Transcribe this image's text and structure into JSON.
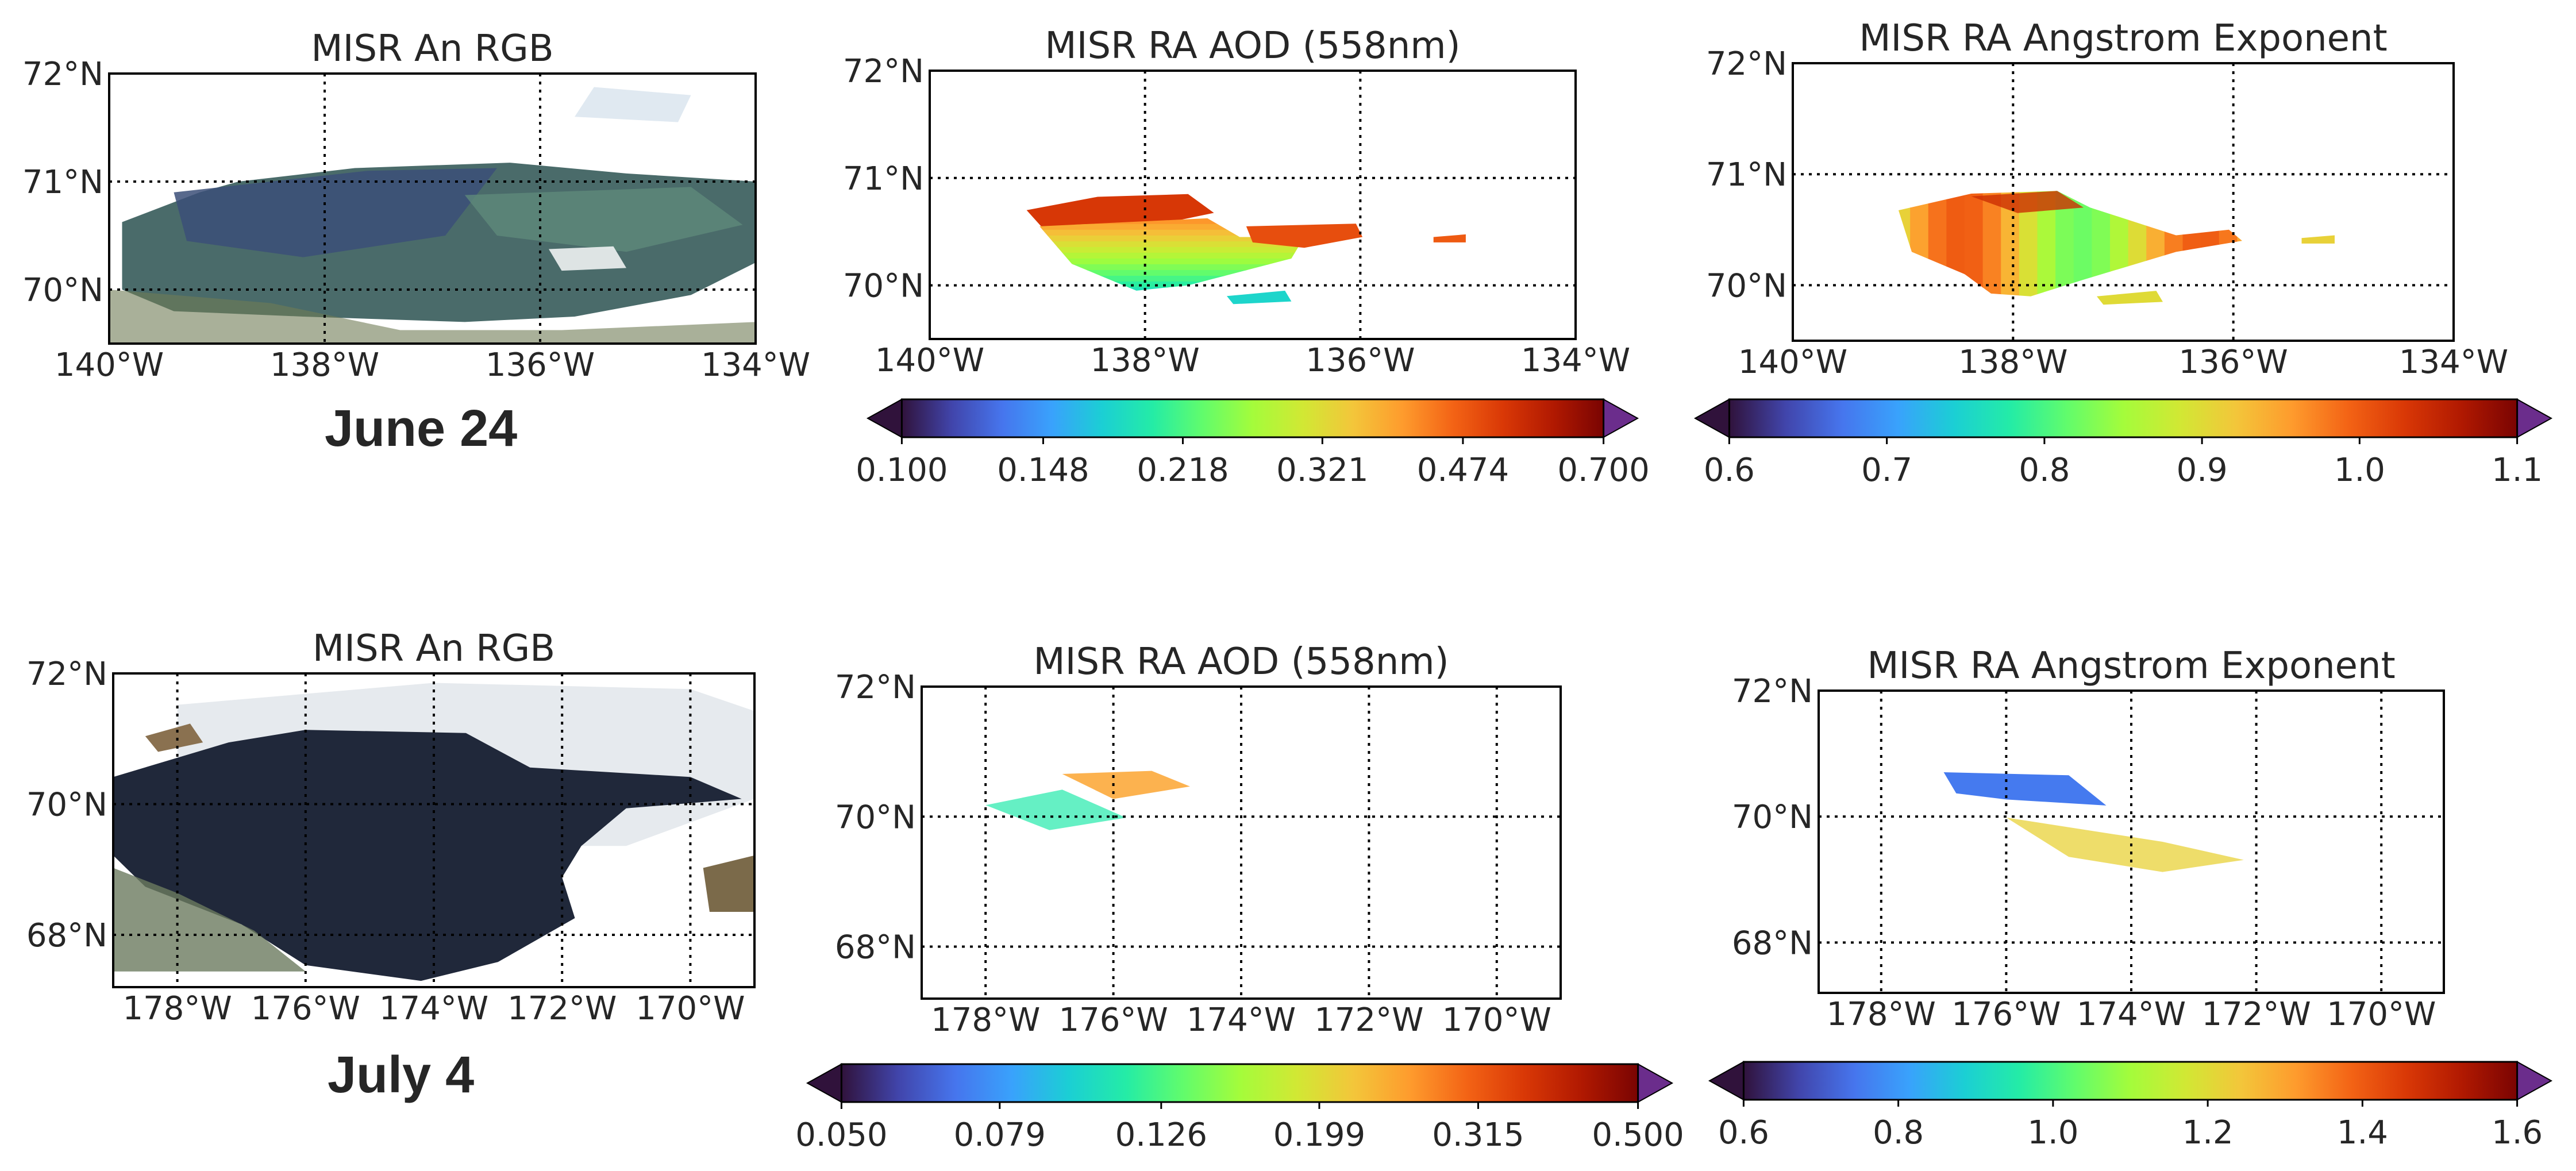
{
  "rows": [
    {
      "date_label": "June 24",
      "panels": [
        {
          "title": "MISR An RGB",
          "kind": "rgb",
          "lon_range": [
            -140,
            -134
          ],
          "lat_range": [
            69.5,
            72
          ],
          "lon_ticks": [
            -140,
            -138,
            -136,
            -134
          ],
          "lon_tick_labels": [
            "140°W",
            "138°W",
            "136°W",
            "134°W"
          ],
          "lat_ticks": [
            70,
            71,
            72
          ],
          "lat_tick_labels": [
            "70°N",
            "71°N",
            "72°N"
          ]
        },
        {
          "title": "MISR RA AOD (558nm)",
          "kind": "aod",
          "lon_range": [
            -140,
            -134
          ],
          "lat_range": [
            69.5,
            72
          ],
          "lon_ticks": [
            -140,
            -138,
            -136,
            -134
          ],
          "lon_tick_labels": [
            "140°W",
            "138°W",
            "136°W",
            "134°W"
          ],
          "lat_ticks": [
            70,
            71,
            72
          ],
          "lat_tick_labels": [
            "70°N",
            "71°N",
            "72°N"
          ],
          "colorbar": {
            "min": 0.1,
            "max": 0.7,
            "scale": "log",
            "extend": "both",
            "ticks": [
              0.1,
              0.148,
              0.218,
              0.321,
              0.474,
              0.7
            ],
            "tick_labels": [
              "0.100",
              "0.148",
              "0.218",
              "0.321",
              "0.474",
              "0.700"
            ]
          }
        },
        {
          "title": "MISR RA Angstrom Exponent",
          "kind": "ae",
          "lon_range": [
            -140,
            -134
          ],
          "lat_range": [
            69.5,
            72
          ],
          "lon_ticks": [
            -140,
            -138,
            -136,
            -134
          ],
          "lon_tick_labels": [
            "140°W",
            "138°W",
            "136°W",
            "134°W"
          ],
          "lat_ticks": [
            70,
            71,
            72
          ],
          "lat_tick_labels": [
            "70°N",
            "71°N",
            "72°N"
          ],
          "colorbar": {
            "min": 0.6,
            "max": 1.1,
            "scale": "linear",
            "extend": "both",
            "ticks": [
              0.6,
              0.7,
              0.8,
              0.9,
              1.0,
              1.1
            ],
            "tick_labels": [
              "0.6",
              "0.7",
              "0.8",
              "0.9",
              "1.0",
              "1.1"
            ]
          }
        }
      ]
    },
    {
      "date_label": "July 4",
      "panels": [
        {
          "title": "MISR An RGB",
          "kind": "rgb",
          "lon_range": [
            -179,
            -169
          ],
          "lat_range": [
            67.2,
            72
          ],
          "lon_ticks": [
            -178,
            -176,
            -174,
            -172,
            -170
          ],
          "lon_tick_labels": [
            "178°W",
            "176°W",
            "174°W",
            "172°W",
            "170°W"
          ],
          "lat_ticks": [
            68,
            70,
            72
          ],
          "lat_tick_labels": [
            "68°N",
            "70°N",
            "72°N"
          ]
        },
        {
          "title": "MISR RA AOD (558nm)",
          "kind": "aod",
          "lon_range": [
            -179,
            -169
          ],
          "lat_range": [
            67.2,
            72
          ],
          "lon_ticks": [
            -178,
            -176,
            -174,
            -172,
            -170
          ],
          "lon_tick_labels": [
            "178°W",
            "176°W",
            "174°W",
            "172°W",
            "170°W"
          ],
          "lat_ticks": [
            68,
            70,
            72
          ],
          "lat_tick_labels": [
            "68°N",
            "70°N",
            "72°N"
          ],
          "colorbar": {
            "min": 0.05,
            "max": 0.5,
            "scale": "log",
            "extend": "both",
            "ticks": [
              0.05,
              0.079,
              0.126,
              0.199,
              0.315,
              0.5
            ],
            "tick_labels": [
              "0.050",
              "0.079",
              "0.126",
              "0.199",
              "0.315",
              "0.500"
            ]
          }
        },
        {
          "title": "MISR RA Angstrom Exponent",
          "kind": "ae",
          "lon_range": [
            -179,
            -169
          ],
          "lat_range": [
            67.2,
            72
          ],
          "lon_ticks": [
            -178,
            -176,
            -174,
            -172,
            -170
          ],
          "lon_tick_labels": [
            "178°W",
            "176°W",
            "174°W",
            "172°W",
            "170°W"
          ],
          "lat_ticks": [
            68,
            70,
            72
          ],
          "lat_tick_labels": [
            "68°N",
            "70°N",
            "72°N"
          ],
          "colorbar": {
            "min": 0.6,
            "max": 1.6,
            "scale": "linear",
            "extend": "both",
            "ticks": [
              0.6,
              0.8,
              1.0,
              1.2,
              1.4,
              1.6
            ],
            "tick_labels": [
              "0.6",
              "0.8",
              "1.0",
              "1.2",
              "1.4",
              "1.6"
            ]
          }
        }
      ]
    }
  ],
  "colormap_stops": [
    "#30123b",
    "#4145ab",
    "#4675ed",
    "#39a2fc",
    "#1bcfd4",
    "#24eca6",
    "#61fc6c",
    "#a4fc3b",
    "#d1e834",
    "#f3c63a",
    "#fe9b2d",
    "#f36315",
    "#d93806",
    "#b11901",
    "#7a0402"
  ],
  "chart_data": [
    {
      "type": "heatmap",
      "title": "MISR An RGB",
      "date": "June 24",
      "content": "true-color satellite image (not numeric)",
      "x_ticks": [
        "140°W",
        "138°W",
        "136°W",
        "134°W"
      ],
      "y_ticks": [
        "70°N",
        "71°N",
        "72°N"
      ],
      "xlim": [
        -140,
        -134
      ],
      "ylim": [
        69.5,
        72
      ]
    },
    {
      "type": "heatmap",
      "title": "MISR RA AOD (558nm)",
      "date": "June 24",
      "x_ticks": [
        "140°W",
        "138°W",
        "136°W",
        "134°W"
      ],
      "y_ticks": [
        "70°N",
        "71°N",
        "72°N"
      ],
      "xlim": [
        -140,
        -134
      ],
      "ylim": [
        69.5,
        72
      ],
      "colorbar_range": [
        0.1,
        0.7
      ],
      "colorbar_ticks": [
        0.1,
        0.148,
        0.218,
        0.321,
        0.474,
        0.7
      ]
    },
    {
      "type": "heatmap",
      "title": "MISR RA Angstrom Exponent",
      "date": "June 24",
      "x_ticks": [
        "140°W",
        "138°W",
        "136°W",
        "134°W"
      ],
      "y_ticks": [
        "70°N",
        "71°N",
        "72°N"
      ],
      "xlim": [
        -140,
        -134
      ],
      "ylim": [
        69.5,
        72
      ],
      "colorbar_range": [
        0.6,
        1.1
      ],
      "colorbar_ticks": [
        0.6,
        0.7,
        0.8,
        0.9,
        1.0,
        1.1
      ]
    },
    {
      "type": "heatmap",
      "title": "MISR An RGB",
      "date": "July 4",
      "content": "true-color satellite image (not numeric)",
      "x_ticks": [
        "178°W",
        "176°W",
        "174°W",
        "172°W",
        "170°W"
      ],
      "y_ticks": [
        "68°N",
        "70°N",
        "72°N"
      ],
      "xlim": [
        -179,
        -169
      ],
      "ylim": [
        67.2,
        72
      ]
    },
    {
      "type": "heatmap",
      "title": "MISR RA AOD (558nm)",
      "date": "July 4",
      "x_ticks": [
        "178°W",
        "176°W",
        "174°W",
        "172°W",
        "170°W"
      ],
      "y_ticks": [
        "68°N",
        "70°N",
        "72°N"
      ],
      "xlim": [
        -179,
        -169
      ],
      "ylim": [
        67.2,
        72
      ],
      "colorbar_range": [
        0.05,
        0.5
      ],
      "colorbar_ticks": [
        0.05,
        0.079,
        0.126,
        0.199,
        0.315,
        0.5
      ]
    },
    {
      "type": "heatmap",
      "title": "MISR RA Angstrom Exponent",
      "date": "July 4",
      "x_ticks": [
        "178°W",
        "176°W",
        "174°W",
        "172°W",
        "170°W"
      ],
      "y_ticks": [
        "68°N",
        "70°N",
        "72°N"
      ],
      "xlim": [
        -179,
        -169
      ],
      "ylim": [
        67.2,
        72
      ],
      "colorbar_range": [
        0.6,
        1.6
      ],
      "colorbar_ticks": [
        0.6,
        0.8,
        1.0,
        1.2,
        1.4,
        1.6
      ]
    }
  ]
}
